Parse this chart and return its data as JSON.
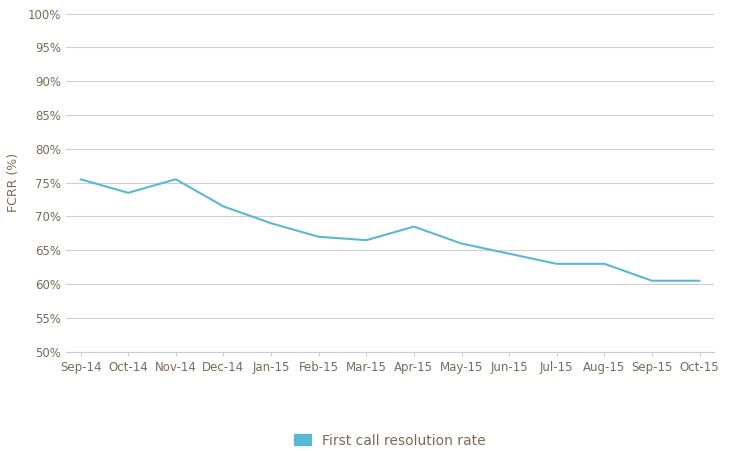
{
  "x_labels": [
    "Sep-14",
    "Oct-14",
    "Nov-14",
    "Dec-14",
    "Jan-15",
    "Feb-15",
    "Mar-15",
    "Apr-15",
    "May-15",
    "Jun-15",
    "Jul-15",
    "Aug-15",
    "Sep-15",
    "Oct-15"
  ],
  "y_values": [
    75.5,
    73.5,
    75.5,
    71.5,
    69.0,
    67.0,
    66.5,
    68.5,
    66.0,
    64.5,
    63.0,
    63.0,
    60.5,
    60.5
  ],
  "line_color": "#5BB8D4",
  "legend_label": "First call resolution rate",
  "legend_color": "#5BB8D4",
  "ylabel": "FCRR (%)",
  "ylim": [
    50,
    100
  ],
  "yticks": [
    50,
    55,
    60,
    65,
    70,
    75,
    80,
    85,
    90,
    95,
    100
  ],
  "ytick_labels": [
    "50%",
    "55%",
    "60%",
    "65%",
    "70%",
    "75%",
    "80%",
    "85%",
    "90%",
    "95%",
    "100%"
  ],
  "background_color": "#ffffff",
  "grid_color": "#d0d0d0",
  "text_color": "#7a6b55",
  "line_width": 1.5,
  "figsize": [
    7.36,
    4.51
  ],
  "dpi": 100,
  "font_family": "Georgia",
  "tick_fontsize": 8.5,
  "ylabel_fontsize": 9,
  "legend_fontsize": 10
}
